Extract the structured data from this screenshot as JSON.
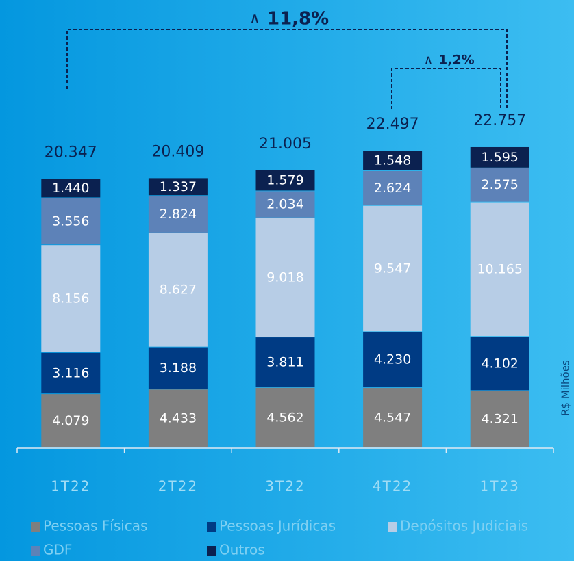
{
  "chart_data": {
    "type": "bar",
    "stacked": true,
    "categories": [
      "1T22",
      "2T22",
      "3T22",
      "4T22",
      "1T23"
    ],
    "series": [
      {
        "name": "Pessoas Físicas",
        "color": "#7f7f7f",
        "values": [
          4079,
          4433,
          4562,
          4547,
          4321
        ],
        "value_labels": [
          "4.079",
          "4.433",
          "4.562",
          "4.547",
          "4.321"
        ]
      },
      {
        "name": "Pessoas Jurídicas",
        "color": "#003b84",
        "values": [
          3116,
          3188,
          3811,
          4230,
          4102
        ],
        "value_labels": [
          "3.116",
          "3.188",
          "3.811",
          "4.230",
          "4.102"
        ]
      },
      {
        "name": "Depósitos Judiciais",
        "color": "#b7cde6",
        "values": [
          8156,
          8627,
          9018,
          9547,
          10165
        ],
        "value_labels": [
          "8.156",
          "8.627",
          "9.018",
          "9.547",
          "10.165"
        ]
      },
      {
        "name": "GDF",
        "color": "#5d82b8",
        "values": [
          3556,
          2824,
          2034,
          2624,
          2575
        ],
        "value_labels": [
          "3.556",
          "2.824",
          "2.034",
          "2.624",
          "2.575"
        ]
      },
      {
        "name": "Outros",
        "color": "#0b2150",
        "values": [
          1440,
          1337,
          1579,
          1548,
          1595
        ],
        "value_labels": [
          "1.440",
          "1.337",
          "1.579",
          "1.548",
          "1.595"
        ]
      }
    ],
    "totals": {
      "values": [
        20347,
        20409,
        21005,
        22497,
        22757
      ],
      "value_labels": [
        "20.347",
        "20.409",
        "21.005",
        "22.497",
        "22.757"
      ]
    },
    "annotations": [
      {
        "symbol": "∧",
        "text": "11,8%"
      },
      {
        "symbol": "∧",
        "text": "1,2%"
      }
    ],
    "y_label": "R$ Milhões"
  }
}
